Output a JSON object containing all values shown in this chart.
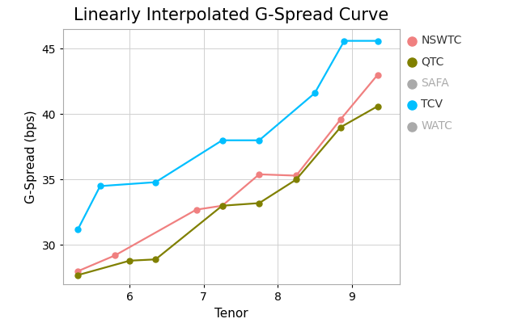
{
  "title": "Linearly Interpolated G-Spread Curve",
  "xlabel": "Tenor",
  "ylabel": "G-Spread (bps)",
  "series": {
    "NSWTC": {
      "x": [
        5.3,
        5.8,
        6.9,
        7.25,
        7.75,
        8.25,
        8.85,
        9.35
      ],
      "y": [
        28.0,
        29.2,
        32.7,
        33.0,
        35.4,
        35.3,
        39.6,
        43.0
      ],
      "color": "#F08080",
      "marker": "o",
      "linewidth": 1.6,
      "markersize": 5
    },
    "QTC": {
      "x": [
        5.3,
        6.0,
        6.35,
        7.25,
        7.75,
        8.25,
        8.85,
        9.35
      ],
      "y": [
        27.7,
        28.8,
        28.9,
        33.0,
        33.2,
        35.0,
        39.0,
        40.6
      ],
      "color": "#808000",
      "marker": "o",
      "linewidth": 1.6,
      "markersize": 5
    },
    "SAFA": {
      "x": [],
      "y": [],
      "color": "#90EE90",
      "marker": "o",
      "linewidth": 1.6,
      "markersize": 5
    },
    "TCV": {
      "x": [
        5.3,
        5.6,
        6.35,
        7.25,
        7.75,
        8.5,
        8.9,
        9.35
      ],
      "y": [
        31.2,
        34.5,
        34.8,
        38.0,
        38.0,
        41.6,
        45.6,
        45.6
      ],
      "color": "#00BFFF",
      "marker": "o",
      "linewidth": 1.6,
      "markersize": 5
    },
    "WATC": {
      "x": [],
      "y": [],
      "color": "#FFB6C1",
      "marker": "o",
      "linewidth": 1.6,
      "markersize": 5
    }
  },
  "xlim": [
    5.1,
    9.65
  ],
  "ylim": [
    27.0,
    46.5
  ],
  "xticks": [
    6,
    7,
    8,
    9
  ],
  "yticks": [
    30,
    35,
    40,
    45
  ],
  "grid": true,
  "legend_order": [
    "NSWTC",
    "QTC",
    "SAFA",
    "TCV",
    "WATC"
  ],
  "background_color": "#ffffff",
  "plot_background": "#ffffff",
  "title_fontsize": 15,
  "axis_label_fontsize": 11,
  "tick_fontsize": 10,
  "legend_fontsize": 10,
  "gray_series": [
    "SAFA",
    "WATC"
  ]
}
